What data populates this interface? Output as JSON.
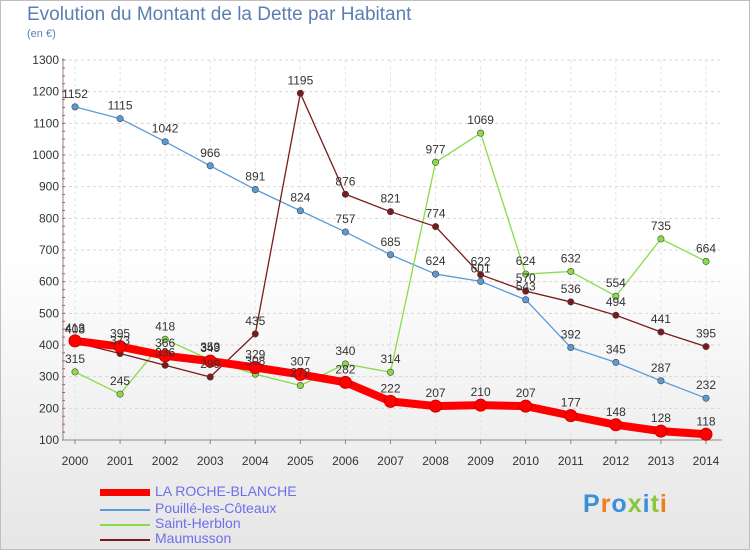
{
  "chart_data": {
    "type": "line",
    "title": "Evolution du Montant de la Dette par Habitant",
    "subtitle": "(en €)",
    "x": [
      "2000",
      "2001",
      "2002",
      "2003",
      "2004",
      "2005",
      "2006",
      "2007",
      "2008",
      "2009",
      "2010",
      "2011",
      "2012",
      "2013",
      "2014"
    ],
    "ylim": [
      100,
      1300
    ],
    "yticks": [
      100,
      200,
      300,
      400,
      500,
      600,
      700,
      800,
      900,
      1000,
      1100,
      1200,
      1300
    ],
    "grid": true,
    "legend_position": "bottom-left",
    "series": [
      {
        "name": "LA ROCHE-BLANCHE",
        "color": "#ff0000",
        "values": [
          413,
          395,
          366,
          349,
          329,
          307,
          282,
          222,
          207,
          210,
          207,
          177,
          148,
          128,
          118
        ]
      },
      {
        "name": "Pouillé-les-Côteaux",
        "color": "#5b9bd5",
        "values": [
          1152,
          1115,
          1042,
          966,
          891,
          824,
          757,
          685,
          624,
          601,
          543,
          392,
          345,
          287,
          232
        ]
      },
      {
        "name": "Saint-Herblon",
        "color": "#88dd44",
        "values": [
          315,
          245,
          418,
          353,
          308,
          272,
          340,
          314,
          977,
          1069,
          624,
          632,
          554,
          735,
          664
        ]
      },
      {
        "name": "Maumusson",
        "color": "#7a1a1a",
        "values": [
          408,
          373,
          336,
          299,
          435,
          1195,
          876,
          821,
          774,
          622,
          570,
          536,
          494,
          441,
          395
        ]
      }
    ]
  },
  "logo": {
    "text": "Proxiti",
    "colors": [
      "#3a8fd8",
      "#f07d1a",
      "#3a8fd8",
      "#8cc63f",
      "#3a8fd8",
      "#8cc63f",
      "#f07d1a"
    ]
  }
}
